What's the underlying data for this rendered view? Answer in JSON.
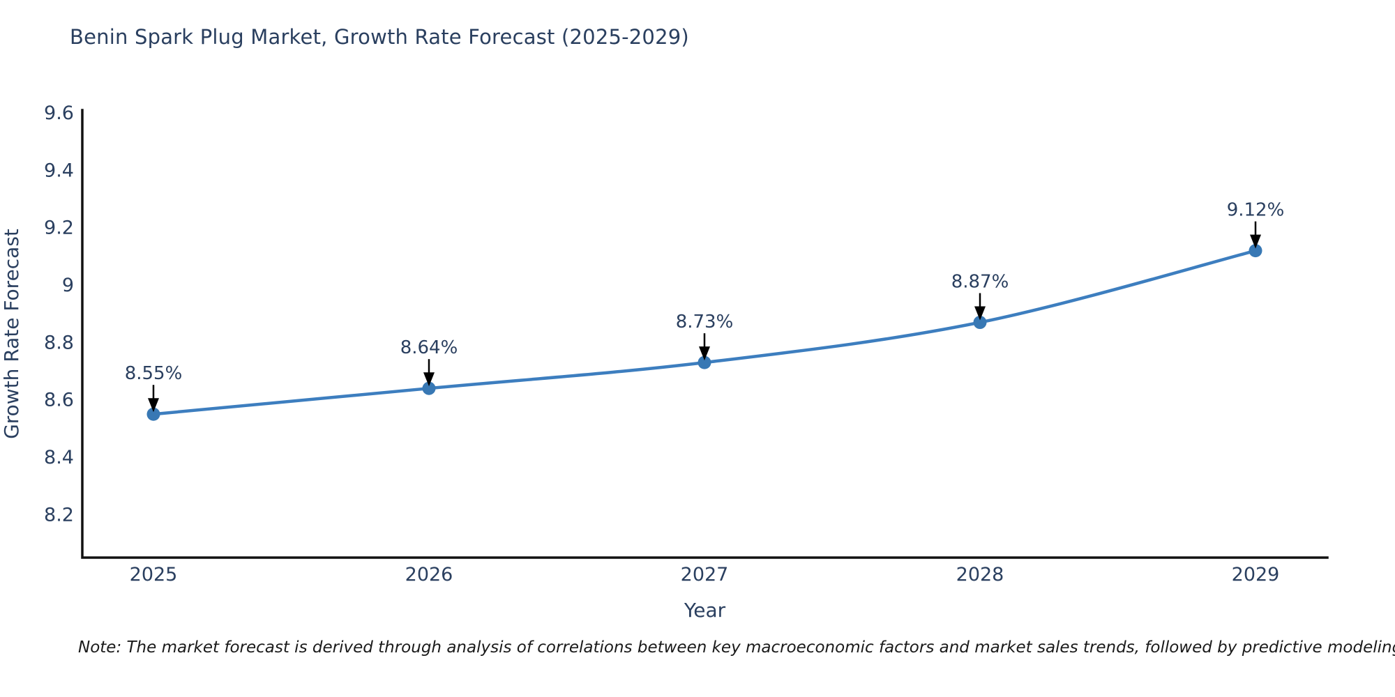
{
  "page": {
    "background": "#ffffff"
  },
  "chart_data": {
    "type": "line",
    "title": "Benin Spark Plug Market, Growth Rate Forecast (2025-2029)",
    "xlabel": "Year",
    "ylabel": "Growth Rate Forecast",
    "categories": [
      "2025",
      "2026",
      "2027",
      "2028",
      "2029"
    ],
    "series": [
      {
        "name": "Growth Rate Forecast",
        "values": [
          8.55,
          8.64,
          8.73,
          8.87,
          9.12
        ]
      }
    ],
    "point_labels": [
      "8.55%",
      "8.64%",
      "8.73%",
      "8.87%",
      "9.12%"
    ],
    "y_ticks": [
      "8.2",
      "8.4",
      "8.6",
      "8.8",
      "9",
      "9.2",
      "9.4",
      "9.6"
    ],
    "y_tick_values": [
      8.2,
      8.4,
      8.6,
      8.8,
      9.0,
      9.2,
      9.4,
      9.6
    ],
    "ylim": [
      8.05,
      9.61
    ],
    "grid": false,
    "legend": "none",
    "line_shape": "spline",
    "annotations": "value labels with downward arrows above each point",
    "colors": {
      "line": "#3d7ebf",
      "marker": "#3878b4",
      "arrow": "#000000",
      "axis": "#111111",
      "text": "#2a3f5f"
    }
  },
  "note": {
    "text": "Note: The market forecast is derived through analysis of correlations between key macroeconomic factors and market sales trends, followed by predictive modeling to project future sales"
  }
}
